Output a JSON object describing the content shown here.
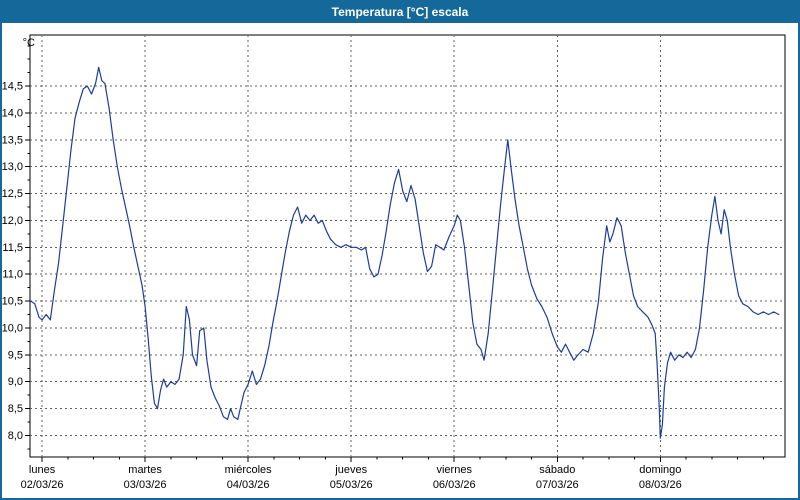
{
  "window": {
    "title": "Temperatura [°C] escala",
    "titlebar_color": "#14699a",
    "border_color": "#14699a"
  },
  "chart_data": {
    "type": "line",
    "title": "Temperatura [°C] escala",
    "unit_label": "°C",
    "line_color": "#1d3d9c",
    "grid_color": "#606060",
    "axis_color": "#000000",
    "background": "#ffffff",
    "legend_position": "none",
    "grid": "dashed",
    "ylim": [
      7.6,
      15.45
    ],
    "xlim_days": [
      -0.117,
      7.21
    ],
    "y_ticks": [
      8.0,
      8.5,
      9.0,
      9.5,
      10.0,
      10.5,
      11.0,
      11.5,
      12.0,
      12.5,
      13.0,
      13.5,
      14.0,
      14.5
    ],
    "y_tick_labels": [
      "8,0",
      "8,5",
      "9,0",
      "9,5",
      "10,0",
      "10,5",
      "11,0",
      "11,5",
      "12,0",
      "12,5",
      "13,0",
      "13,5",
      "14,0",
      "14,5"
    ],
    "x_ticks": [
      {
        "pos": 0,
        "day": "lunes",
        "date": "02/03/26"
      },
      {
        "pos": 1,
        "day": "martes",
        "date": "03/03/26"
      },
      {
        "pos": 2,
        "day": "miércoles",
        "date": "04/03/26"
      },
      {
        "pos": 3,
        "day": "jueves",
        "date": "05/03/26"
      },
      {
        "pos": 4,
        "day": "viernes",
        "date": "06/03/26"
      },
      {
        "pos": 5,
        "day": "sábado",
        "date": "07/03/26"
      },
      {
        "pos": 6,
        "day": "domingo",
        "date": "08/03/26"
      }
    ],
    "series": [
      {
        "name": "Temperatura",
        "points": [
          [
            -0.11,
            10.5
          ],
          [
            -0.07,
            10.45
          ],
          [
            -0.03,
            10.2
          ],
          [
            0.0,
            10.15
          ],
          [
            0.04,
            10.25
          ],
          [
            0.08,
            10.15
          ],
          [
            0.12,
            10.7
          ],
          [
            0.16,
            11.2
          ],
          [
            0.2,
            11.9
          ],
          [
            0.24,
            12.6
          ],
          [
            0.28,
            13.3
          ],
          [
            0.32,
            13.9
          ],
          [
            0.36,
            14.2
          ],
          [
            0.4,
            14.45
          ],
          [
            0.44,
            14.5
          ],
          [
            0.48,
            14.35
          ],
          [
            0.52,
            14.55
          ],
          [
            0.55,
            14.85
          ],
          [
            0.58,
            14.6
          ],
          [
            0.61,
            14.55
          ],
          [
            0.65,
            14.1
          ],
          [
            0.69,
            13.5
          ],
          [
            0.73,
            13.0
          ],
          [
            0.77,
            12.6
          ],
          [
            0.81,
            12.25
          ],
          [
            0.85,
            11.9
          ],
          [
            0.89,
            11.5
          ],
          [
            0.93,
            11.15
          ],
          [
            0.97,
            10.8
          ],
          [
            1.0,
            10.4
          ],
          [
            1.03,
            9.8
          ],
          [
            1.06,
            9.1
          ],
          [
            1.09,
            8.6
          ],
          [
            1.12,
            8.5
          ],
          [
            1.15,
            8.85
          ],
          [
            1.18,
            9.05
          ],
          [
            1.21,
            8.9
          ],
          [
            1.25,
            9.0
          ],
          [
            1.29,
            8.95
          ],
          [
            1.33,
            9.05
          ],
          [
            1.37,
            9.5
          ],
          [
            1.4,
            10.4
          ],
          [
            1.43,
            10.15
          ],
          [
            1.46,
            9.5
          ],
          [
            1.5,
            9.3
          ],
          [
            1.53,
            9.95
          ],
          [
            1.57,
            10.0
          ],
          [
            1.6,
            9.4
          ],
          [
            1.64,
            8.9
          ],
          [
            1.68,
            8.7
          ],
          [
            1.72,
            8.55
          ],
          [
            1.76,
            8.35
          ],
          [
            1.8,
            8.3
          ],
          [
            1.83,
            8.5
          ],
          [
            1.86,
            8.35
          ],
          [
            1.9,
            8.3
          ],
          [
            1.93,
            8.55
          ],
          [
            1.96,
            8.8
          ],
          [
            2.0,
            8.95
          ],
          [
            2.04,
            9.2
          ],
          [
            2.08,
            8.95
          ],
          [
            2.12,
            9.05
          ],
          [
            2.16,
            9.3
          ],
          [
            2.2,
            9.65
          ],
          [
            2.24,
            10.1
          ],
          [
            2.28,
            10.5
          ],
          [
            2.32,
            10.95
          ],
          [
            2.36,
            11.4
          ],
          [
            2.4,
            11.8
          ],
          [
            2.44,
            12.1
          ],
          [
            2.48,
            12.25
          ],
          [
            2.52,
            11.95
          ],
          [
            2.56,
            12.1
          ],
          [
            2.6,
            12.0
          ],
          [
            2.64,
            12.1
          ],
          [
            2.68,
            11.95
          ],
          [
            2.72,
            12.0
          ],
          [
            2.76,
            11.8
          ],
          [
            2.8,
            11.65
          ],
          [
            2.85,
            11.55
          ],
          [
            2.9,
            11.5
          ],
          [
            2.95,
            11.55
          ],
          [
            3.0,
            11.5
          ],
          [
            3.05,
            11.5
          ],
          [
            3.1,
            11.45
          ],
          [
            3.14,
            11.5
          ],
          [
            3.18,
            11.1
          ],
          [
            3.22,
            10.95
          ],
          [
            3.26,
            11.0
          ],
          [
            3.3,
            11.35
          ],
          [
            3.34,
            11.8
          ],
          [
            3.38,
            12.3
          ],
          [
            3.42,
            12.7
          ],
          [
            3.46,
            12.95
          ],
          [
            3.5,
            12.55
          ],
          [
            3.54,
            12.35
          ],
          [
            3.58,
            12.65
          ],
          [
            3.62,
            12.4
          ],
          [
            3.66,
            11.9
          ],
          [
            3.7,
            11.4
          ],
          [
            3.74,
            11.05
          ],
          [
            3.78,
            11.15
          ],
          [
            3.82,
            11.55
          ],
          [
            3.86,
            11.5
          ],
          [
            3.9,
            11.45
          ],
          [
            3.95,
            11.7
          ],
          [
            4.0,
            11.9
          ],
          [
            4.03,
            12.1
          ],
          [
            4.06,
            12.0
          ],
          [
            4.1,
            11.5
          ],
          [
            4.14,
            10.8
          ],
          [
            4.18,
            10.1
          ],
          [
            4.22,
            9.7
          ],
          [
            4.26,
            9.6
          ],
          [
            4.29,
            9.4
          ],
          [
            4.33,
            9.9
          ],
          [
            4.37,
            10.7
          ],
          [
            4.41,
            11.5
          ],
          [
            4.45,
            12.3
          ],
          [
            4.49,
            13.0
          ],
          [
            4.52,
            13.5
          ],
          [
            4.55,
            13.0
          ],
          [
            4.59,
            12.4
          ],
          [
            4.63,
            11.9
          ],
          [
            4.67,
            11.5
          ],
          [
            4.71,
            11.1
          ],
          [
            4.75,
            10.8
          ],
          [
            4.8,
            10.55
          ],
          [
            4.85,
            10.4
          ],
          [
            4.9,
            10.2
          ],
          [
            4.95,
            9.9
          ],
          [
            5.0,
            9.65
          ],
          [
            5.04,
            9.55
          ],
          [
            5.08,
            9.7
          ],
          [
            5.12,
            9.55
          ],
          [
            5.16,
            9.4
          ],
          [
            5.2,
            9.5
          ],
          [
            5.25,
            9.6
          ],
          [
            5.3,
            9.55
          ],
          [
            5.35,
            9.9
          ],
          [
            5.4,
            10.5
          ],
          [
            5.44,
            11.3
          ],
          [
            5.48,
            11.9
          ],
          [
            5.51,
            11.6
          ],
          [
            5.54,
            11.75
          ],
          [
            5.58,
            12.05
          ],
          [
            5.62,
            11.9
          ],
          [
            5.66,
            11.4
          ],
          [
            5.7,
            11.0
          ],
          [
            5.74,
            10.6
          ],
          [
            5.78,
            10.4
          ],
          [
            5.83,
            10.3
          ],
          [
            5.88,
            10.2
          ],
          [
            5.92,
            10.05
          ],
          [
            5.95,
            9.9
          ],
          [
            5.97,
            9.3
          ],
          [
            5.99,
            8.5
          ],
          [
            6.0,
            7.95
          ],
          [
            6.02,
            8.2
          ],
          [
            6.04,
            8.9
          ],
          [
            6.07,
            9.35
          ],
          [
            6.1,
            9.55
          ],
          [
            6.14,
            9.4
          ],
          [
            6.18,
            9.5
          ],
          [
            6.22,
            9.45
          ],
          [
            6.26,
            9.55
          ],
          [
            6.3,
            9.45
          ],
          [
            6.34,
            9.6
          ],
          [
            6.38,
            10.0
          ],
          [
            6.42,
            10.7
          ],
          [
            6.46,
            11.5
          ],
          [
            6.5,
            12.1
          ],
          [
            6.53,
            12.45
          ],
          [
            6.56,
            12.0
          ],
          [
            6.59,
            11.75
          ],
          [
            6.62,
            12.2
          ],
          [
            6.65,
            12.0
          ],
          [
            6.68,
            11.5
          ],
          [
            6.72,
            11.0
          ],
          [
            6.76,
            10.6
          ],
          [
            6.8,
            10.45
          ],
          [
            6.85,
            10.4
          ],
          [
            6.9,
            10.3
          ],
          [
            6.95,
            10.25
          ],
          [
            7.0,
            10.3
          ],
          [
            7.05,
            10.25
          ],
          [
            7.1,
            10.3
          ],
          [
            7.15,
            10.25
          ]
        ]
      }
    ]
  }
}
